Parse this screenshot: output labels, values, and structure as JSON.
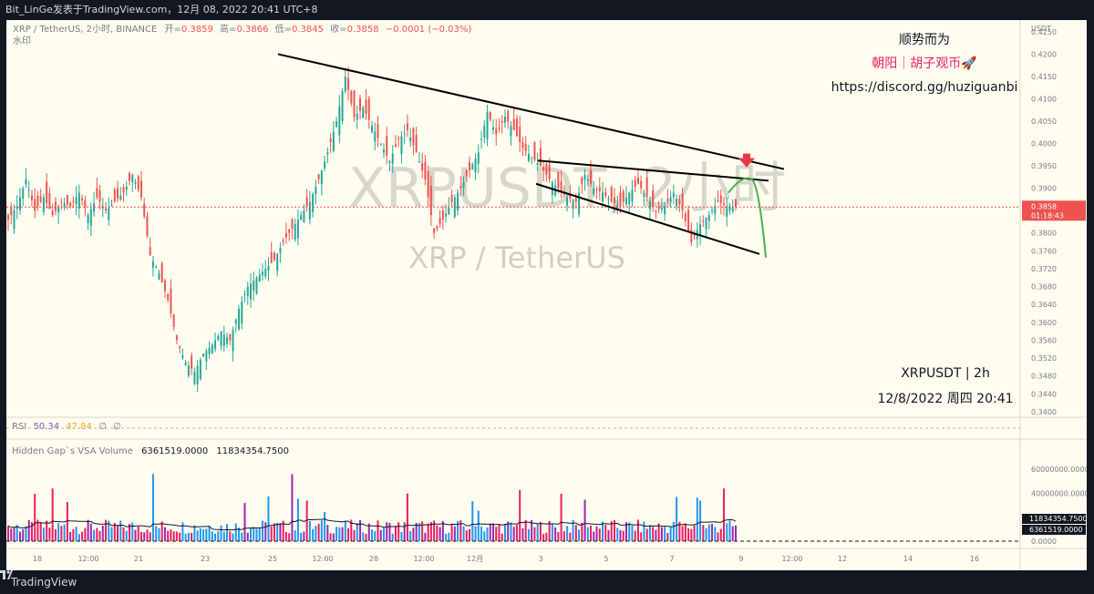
{
  "header": {
    "title": "Bit_LinGe发表于TradingView.com，12月 08, 2022 20:41 UTC+8"
  },
  "legend": {
    "symbol": "XRP / TetherUS, 2小时, BINANCE",
    "o_label": "开=",
    "o": "0.3859",
    "h_label": "高=",
    "h": "0.3866",
    "l_label": "低=",
    "l": "0.3845",
    "c_label": "收=",
    "c": "0.3858",
    "change": "−0.0001 (−0.03%)",
    "watermark_label": "水印"
  },
  "watermark": {
    "big": "XRPUSDT, 2小时",
    "sub": "XRP / TetherUS"
  },
  "annotations": {
    "line1": "顺势而为",
    "line2": "朝阳｜胡子观币🚀",
    "line3": "https://discord.gg/huziguanbi",
    "pair": "XRPUSDT | 2h",
    "datetime": "12/8/2022 周四 20:41"
  },
  "price_axis": {
    "unit": "USDT",
    "ticks": [
      "0.4250",
      "0.4200",
      "0.4150",
      "0.4100",
      "0.4050",
      "0.4000",
      "0.3950",
      "0.3900",
      "0.3850",
      "0.3800",
      "0.3760",
      "0.3720",
      "0.3680",
      "0.3640",
      "0.3600",
      "0.3560",
      "0.3520",
      "0.3480",
      "0.3440",
      "0.3400"
    ],
    "last_price": "0.3858",
    "countdown": "01:18:43"
  },
  "rsi": {
    "label": "RSI",
    "value1": "50.34",
    "value2": "47.84",
    "extra1": "∅",
    "extra2": "∅"
  },
  "volume": {
    "label": "Hidden Gap`s VSA Volume",
    "value1": "6361519.0000",
    "value2": "11834354.7500",
    "axis_ticks": [
      "60000000.0000",
      "40000000.0000",
      "20000000.0000",
      "0.0000"
    ],
    "tag_ma": "11834354.7500",
    "tag_vol": "6361519.0000"
  },
  "time_axis": {
    "ticks": [
      "18",
      "12:00",
      "21",
      "23",
      "25",
      "12:00",
      "28",
      "12:00",
      "12月",
      "3",
      "5",
      "7",
      "9",
      "12:00",
      "12",
      "14",
      "16"
    ]
  },
  "footer": {
    "brand": "TradingView"
  },
  "colors": {
    "up": "#26a69a",
    "down": "#ef5350",
    "bg": "#fefdf0",
    "frame": "#131722",
    "arrow": "#e53945",
    "projection": "#4caf50",
    "highlight": "#e91e63"
  },
  "chart_data": {
    "type": "candlestick",
    "title": "XRP / TetherUS, 2小时, BINANCE",
    "ylabel": "USDT",
    "ylim": [
      0.34,
      0.426
    ],
    "close_path": [
      0.383,
      0.386,
      0.392,
      0.385,
      0.388,
      0.384,
      0.387,
      0.386,
      0.389,
      0.384,
      0.388,
      0.385,
      0.387,
      0.389,
      0.393,
      0.388,
      0.375,
      0.371,
      0.365,
      0.356,
      0.351,
      0.349,
      0.353,
      0.355,
      0.358,
      0.356,
      0.363,
      0.368,
      0.37,
      0.372,
      0.374,
      0.378,
      0.381,
      0.384,
      0.387,
      0.392,
      0.398,
      0.405,
      0.415,
      0.406,
      0.408,
      0.404,
      0.4,
      0.396,
      0.401,
      0.403,
      0.398,
      0.392,
      0.38,
      0.383,
      0.387,
      0.39,
      0.394,
      0.398,
      0.407,
      0.402,
      0.406,
      0.403,
      0.399,
      0.397,
      0.395,
      0.392,
      0.39,
      0.388,
      0.387,
      0.393,
      0.39,
      0.389,
      0.387,
      0.386,
      0.389,
      0.391,
      0.388,
      0.385,
      0.386,
      0.389,
      0.385,
      0.378,
      0.382,
      0.384,
      0.387,
      0.386,
      0.3858
    ],
    "series": [
      {
        "name": "RSI",
        "last": 50.34
      },
      {
        "name": "RSI MA",
        "last": 47.84
      },
      {
        "name": "Volume",
        "last": 6361519.0
      },
      {
        "name": "Volume MA",
        "last": 11834354.75
      }
    ],
    "last_price": 0.3858
  }
}
